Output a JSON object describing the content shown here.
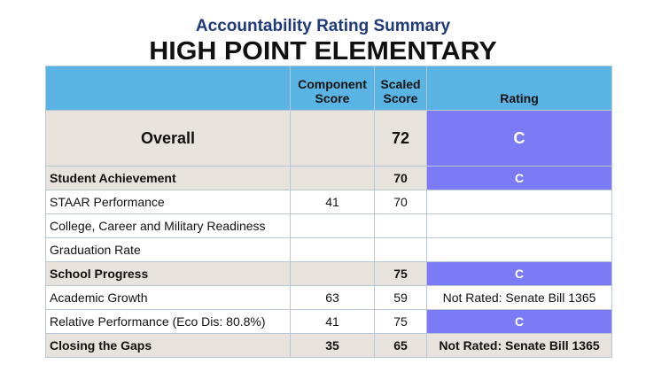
{
  "header": {
    "subtitle": "Accountability Rating Summary",
    "school_name": "HIGH POINT ELEMENTARY"
  },
  "table": {
    "columns": {
      "component_line1": "Component",
      "component_line2": "Score",
      "scaled_line1": "Scaled",
      "scaled_line2": "Score",
      "rating": "Rating"
    },
    "rows": [
      {
        "label": "Overall",
        "component": "",
        "scaled": "72",
        "rating": "C"
      },
      {
        "label": "Student Achievement",
        "component": "",
        "scaled": "70",
        "rating": "C"
      },
      {
        "label": "STAAR Performance",
        "component": "41",
        "scaled": "70",
        "rating": ""
      },
      {
        "label": "College, Career and Military Readiness",
        "component": "",
        "scaled": "",
        "rating": ""
      },
      {
        "label": "Graduation Rate",
        "component": "",
        "scaled": "",
        "rating": ""
      },
      {
        "label": "School Progress",
        "component": "",
        "scaled": "75",
        "rating": "C"
      },
      {
        "label": "Academic Growth",
        "component": "63",
        "scaled": "59",
        "rating": "Not Rated: Senate Bill 1365"
      },
      {
        "label": "Relative Performance (Eco Dis: 80.8%)",
        "component": "41",
        "scaled": "75",
        "rating": "C"
      },
      {
        "label": "Closing the Gaps",
        "component": "35",
        "scaled": "65",
        "rating": "Not Rated: Senate Bill 1365"
      }
    ]
  },
  "colors": {
    "header_blue": "#5ab4e3",
    "rating_purple": "#7b7bf5",
    "section_gray": "#e7e2dc",
    "title_navy": "#1f3a7a"
  }
}
